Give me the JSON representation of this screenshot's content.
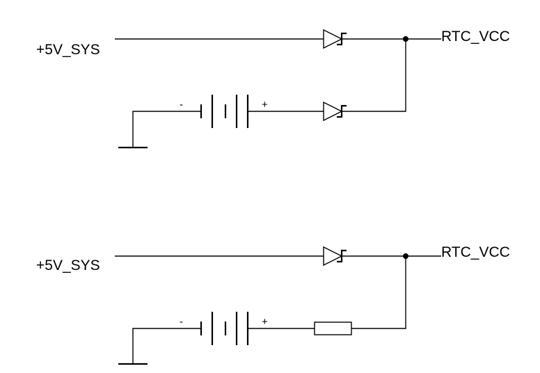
{
  "circuit_top": {
    "input_label": "+5V_SYS",
    "output_label": "RTC_VCC",
    "battery_minus": "-",
    "battery_plus": "+",
    "supply_diode": "schottky-diode-icon",
    "battery_series_element": "schottky-diode-icon"
  },
  "circuit_bottom": {
    "input_label": "+5V_SYS",
    "output_label": "RTC_VCC",
    "battery_minus": "-",
    "battery_plus": "+",
    "supply_diode": "schottky-diode-icon",
    "battery_series_element": "resistor-icon"
  },
  "colors": {
    "line": "#000000",
    "background": "#ffffff"
  }
}
